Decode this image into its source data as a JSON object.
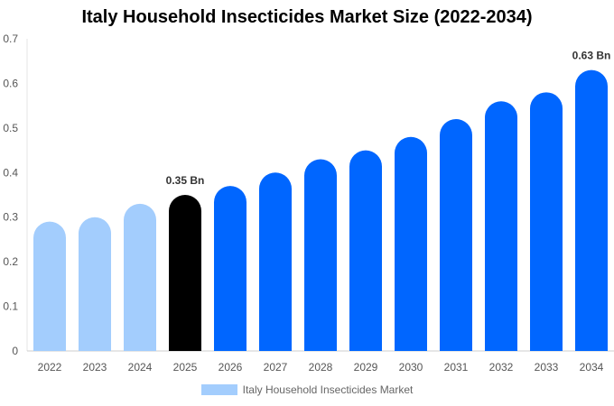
{
  "chart_data": {
    "type": "bar",
    "title": "Italy Household Insecticides Market Size (2022-2034)",
    "categories": [
      "2022",
      "2023",
      "2024",
      "2025",
      "2026",
      "2027",
      "2028",
      "2029",
      "2030",
      "2031",
      "2032",
      "2033",
      "2034"
    ],
    "series": [
      {
        "name": "Italy Household Insecticides Market",
        "values": [
          0.29,
          0.3,
          0.33,
          0.35,
          0.37,
          0.4,
          0.43,
          0.45,
          0.48,
          0.52,
          0.56,
          0.58,
          0.63
        ]
      }
    ],
    "ylim": [
      0,
      0.7
    ],
    "yticks": [
      "0",
      "0.1",
      "0.2",
      "0.3",
      "0.4",
      "0.5",
      "0.6",
      "0.7"
    ],
    "data_labels": [
      {
        "category": "2025",
        "text": "0.35 Bn"
      },
      {
        "category": "2034",
        "text": "0.63 Bn"
      }
    ],
    "colors": {
      "historical": "#a3cdfd",
      "base_year": "#000000",
      "forecast": "#0066ff"
    },
    "base_year": "2025",
    "legend_position": "bottom",
    "grid": false
  }
}
